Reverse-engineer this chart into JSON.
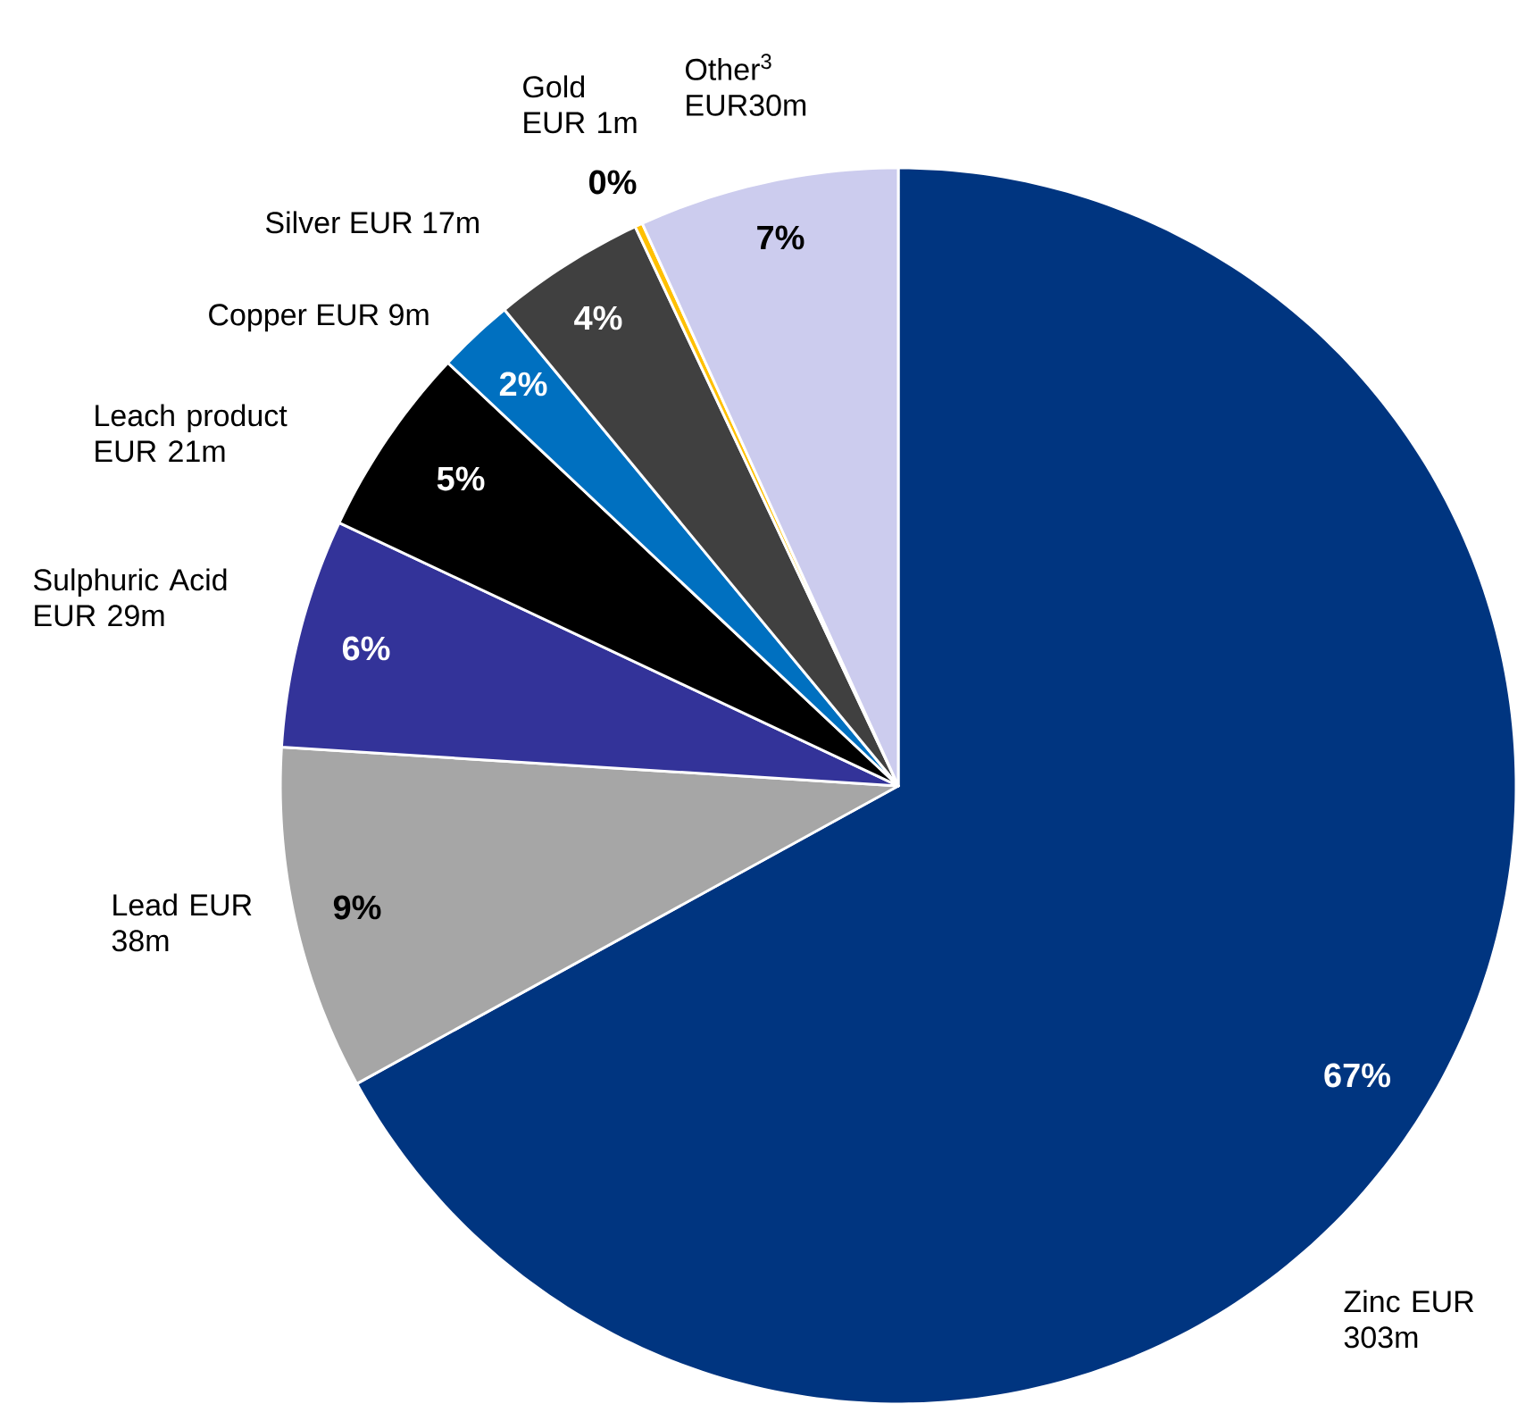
{
  "chart_data": {
    "type": "pie",
    "categories": [
      "Zinc EUR 303m",
      "Lead EUR 38m",
      "Sulphuric Acid EUR 29m",
      "Leach product EUR 21m",
      "Copper EUR 9m",
      "Silver EUR 17m",
      "Gold EUR 1m",
      "Other$^{3}$ EUR30m"
    ],
    "values": [
      67,
      9,
      6,
      5,
      2,
      4,
      0.2,
      6.8
    ],
    "colors": [
      "#003580",
      "#a6a6a6",
      "#333399",
      "#000000",
      "#0070c0",
      "#404040",
      "#ffc000",
      "#ccccee"
    ],
    "value_labels": [
      "67%",
      "9%",
      "6%",
      "5%",
      "2%",
      "4%",
      "0%",
      "7%"
    ]
  }
}
